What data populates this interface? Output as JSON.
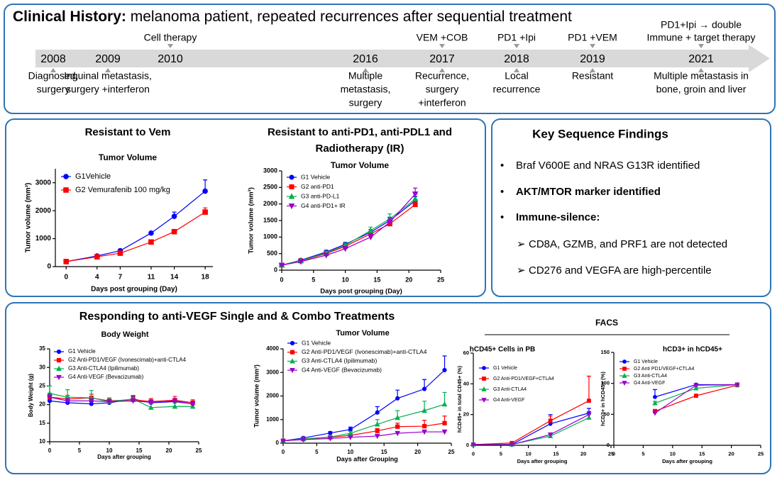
{
  "header": {
    "title_bold": "Clinical History:",
    "title_rest": " melanoma patient, repeated recurrences after sequential treatment"
  },
  "timeline": {
    "events": [
      {
        "year": "2008",
        "above": [],
        "below": [
          "Diagnosed,",
          "surgery"
        ]
      },
      {
        "year": "2009",
        "above": [],
        "below": [
          "Inguinal metastasis,",
          "surgery +interferon"
        ]
      },
      {
        "year": "2010",
        "above": [
          "Cell therapy"
        ],
        "below": []
      },
      {
        "year": "2016",
        "above": [],
        "below": [
          "Multiple",
          "metastasis,",
          "surgery"
        ]
      },
      {
        "year": "2017",
        "above": [
          "VEM +COB"
        ],
        "below": [
          "Recurrence,",
          "surgery",
          "+interferon"
        ]
      },
      {
        "year": "2018",
        "above": [
          "PD1 +Ipi"
        ],
        "below": [
          "Local",
          "recurrence"
        ]
      },
      {
        "year": "2019",
        "above": [
          "PD1 +VEM"
        ],
        "below": [
          "Resistant"
        ]
      },
      {
        "year": "2021",
        "above": [
          "PD1+Ipi → double",
          "Immune + target therapy"
        ],
        "below": [
          "Multiple metastasis in",
          "bone, groin and liver"
        ]
      }
    ]
  },
  "findings": {
    "title": "Key Sequence Findings",
    "items": [
      {
        "bullet": "•",
        "text": "Braf V600E and NRAS G13R identified",
        "bold": false,
        "color": "#222222",
        "indent": false
      },
      {
        "bullet": "•",
        "text": "AKT/MTOR marker identified",
        "bold": true,
        "color": "#222222",
        "indent": false
      },
      {
        "bullet": "•",
        "text": "Immune-silence:",
        "bold": true,
        "color": "#222222",
        "indent": false
      },
      {
        "bullet": "➢",
        "text": "CD8A, GZMB, and PRF1 are not detected",
        "bold": false,
        "color": "#222222",
        "indent": true
      },
      {
        "bullet": "➢",
        "text": "CD276 and VEGFA are high-percentile",
        "bold": false,
        "color": "#c00000",
        "indent": true
      }
    ]
  },
  "response_panel": {
    "title": "Responding to anti-VEGF Single and & Combo Treatments"
  },
  "facs": {
    "title": "FACS"
  },
  "chart_data": [
    {
      "type": "line",
      "title": "Resistant to Vem",
      "subtitle": "Tumor Volume",
      "x_label": "Days post grouping (Day)",
      "y_label": "Tumor volume (mm³)",
      "x": [
        0,
        4,
        7,
        11,
        14,
        18
      ],
      "xlim": [
        -1.4,
        19
      ],
      "xticks": [
        0,
        4,
        7,
        11,
        14,
        18
      ],
      "ylim": [
        0,
        3500
      ],
      "yticks": [
        0,
        1000,
        2000,
        3000
      ],
      "series": [
        {
          "name": "G1Vehicle",
          "color": "#0000ff",
          "marker": "circle",
          "values": [
            180,
            380,
            570,
            1200,
            1800,
            2700
          ],
          "errors": [
            20,
            30,
            30,
            40,
            150,
            400
          ]
        },
        {
          "name": "G2 Vemurafenib 100 mg/kg",
          "color": "#ff0000",
          "marker": "square",
          "values": [
            180,
            350,
            480,
            880,
            1250,
            1950
          ],
          "errors": [
            20,
            30,
            30,
            50,
            80,
            150
          ]
        }
      ]
    },
    {
      "type": "line",
      "title": [
        "Resistant to anti-PD1, anti-PDL1 and",
        "Radiotherapy (IR)"
      ],
      "subtitle": "Tumor Volume",
      "x_label": "Days post grouping (Day)",
      "y_label": "Tumor volume (mm³)",
      "x": [
        0,
        3,
        7,
        10,
        14,
        17,
        21
      ],
      "xlim": [
        0,
        25
      ],
      "xticks": [
        0,
        5,
        10,
        15,
        20,
        25
      ],
      "ylim": [
        0,
        3000
      ],
      "yticks": [
        0,
        500,
        1000,
        1500,
        2000,
        2500,
        3000
      ],
      "series": [
        {
          "name": "G1 Vehicle",
          "color": "#0000ff",
          "marker": "circle",
          "values": [
            150,
            300,
            550,
            780,
            1150,
            1500,
            2100
          ],
          "errors": [
            10,
            30,
            50,
            60,
            80,
            100,
            120
          ]
        },
        {
          "name": "G2 anti-PD1",
          "color": "#ff0000",
          "marker": "square",
          "values": [
            150,
            280,
            500,
            720,
            1100,
            1400,
            1980
          ],
          "errors": [
            10,
            30,
            40,
            60,
            80,
            100,
            100
          ]
        },
        {
          "name": "G3 anti-PD-L1",
          "color": "#00b050",
          "marker": "triangle",
          "values": [
            150,
            290,
            520,
            750,
            1200,
            1550,
            2150
          ],
          "errors": [
            10,
            30,
            50,
            70,
            100,
            150,
            150
          ]
        },
        {
          "name": "G4 anti-PD1+ IR",
          "color": "#9900cc",
          "marker": "triangle-down",
          "values": [
            150,
            260,
            450,
            650,
            1000,
            1450,
            2300
          ],
          "errors": [
            10,
            30,
            40,
            60,
            80,
            120,
            180
          ]
        }
      ]
    },
    {
      "type": "line",
      "title": "Body Weight",
      "x_label": "Days after grouping",
      "y_label": "Body Weight (g)",
      "x": [
        0,
        3,
        7,
        10,
        14,
        17,
        21,
        24
      ],
      "xlim": [
        0,
        25
      ],
      "xticks": [
        0,
        5,
        10,
        15,
        20,
        25
      ],
      "ylim": [
        10,
        35
      ],
      "yticks": [
        10,
        15,
        20,
        25,
        30,
        35
      ],
      "series": [
        {
          "name": "G1 Vehicle",
          "color": "#0000ff",
          "marker": "circle",
          "values": [
            21,
            20.5,
            20.2,
            20.5,
            21.5,
            20.5,
            20.8,
            20.2
          ],
          "errors": [
            0.8,
            0.6,
            0.6,
            0.6,
            0.8,
            0.7,
            0.7,
            0.6
          ]
        },
        {
          "name": "G2 Anti-PD1/VEGF (Ivonescimab)+anti-CTLA4",
          "color": "#ff0000",
          "marker": "square",
          "values": [
            22,
            21.5,
            21.8,
            21,
            21.3,
            20.8,
            21.2,
            20.5
          ],
          "errors": [
            1,
            1,
            1,
            0.8,
            0.8,
            0.8,
            1,
            0.8
          ]
        },
        {
          "name": "G3 Anti-CTLA4 (Ipilimumab)",
          "color": "#00b050",
          "marker": "triangle",
          "values": [
            23,
            22,
            21.8,
            20.8,
            21.5,
            19.2,
            19.5,
            19.5
          ],
          "errors": [
            2,
            2,
            2,
            1,
            1,
            1,
            1,
            1
          ]
        },
        {
          "name": "G4 Anti-VEGF (Bevacizumab)",
          "color": "#9900cc",
          "marker": "triangle-down",
          "values": [
            22,
            21,
            21,
            20.8,
            21,
            20.6,
            21,
            20.2
          ],
          "errors": [
            0.8,
            0.6,
            0.6,
            0.6,
            0.6,
            0.6,
            0.6,
            0.6
          ]
        }
      ]
    },
    {
      "type": "line",
      "title": "Tumor Volume",
      "x_label": "Days after Grouping",
      "y_label": "Tumor volume (mm³)",
      "x": [
        0,
        3,
        7,
        10,
        14,
        17,
        21,
        24
      ],
      "xlim": [
        0,
        25
      ],
      "xticks": [
        0,
        5,
        10,
        15,
        20,
        25
      ],
      "ylim": [
        0,
        4000
      ],
      "yticks": [
        0,
        1000,
        2000,
        3000,
        4000
      ],
      "series": [
        {
          "name": "G1 Vehicle",
          "color": "#0000ff",
          "marker": "circle",
          "values": [
            100,
            220,
            430,
            580,
            1300,
            1900,
            2300,
            3100
          ],
          "errors": [
            20,
            40,
            60,
            100,
            250,
            350,
            400,
            600
          ]
        },
        {
          "name": "G2 Anti-PD1/VEGF (Ivonescimab)+anti-CTLA4",
          "color": "#ff0000",
          "marker": "square",
          "values": [
            100,
            170,
            250,
            330,
            520,
            700,
            720,
            850
          ],
          "errors": [
            20,
            30,
            40,
            60,
            100,
            150,
            250,
            300
          ]
        },
        {
          "name": "G3 Anti-CTLA4 (Ipilimumab)",
          "color": "#00b050",
          "marker": "triangle",
          "values": [
            100,
            180,
            260,
            420,
            800,
            1080,
            1380,
            1650
          ],
          "errors": [
            20,
            30,
            50,
            80,
            200,
            300,
            400,
            500
          ]
        },
        {
          "name": "G4 Anti-VEGF (Bevacizumab)",
          "color": "#9900cc",
          "marker": "triangle-down",
          "values": [
            100,
            150,
            200,
            250,
            300,
            420,
            480,
            480
          ],
          "errors": [
            20,
            30,
            30,
            40,
            50,
            60,
            80,
            80
          ]
        }
      ]
    },
    {
      "type": "line",
      "title": "hCD45+ Cells in PB",
      "x_label": "Days after grouping",
      "y_label": "hCD45+ in total CD45+ (%)",
      "x": [
        0,
        7,
        14,
        21
      ],
      "xlim": [
        0,
        25
      ],
      "xticks": [
        0,
        5,
        10,
        15,
        20,
        25
      ],
      "ylim": [
        0,
        60
      ],
      "yticks": [
        0,
        20,
        40,
        60
      ],
      "series": [
        {
          "name": "G1 Vehicle",
          "color": "#0000ff",
          "marker": "circle",
          "values": [
            0.5,
            0.5,
            14,
            21
          ],
          "errors": [
            0,
            0.3,
            6,
            3
          ]
        },
        {
          "name": "G2 Anti-PD1/VEGF+CTLA4",
          "color": "#ff0000",
          "marker": "square",
          "values": [
            0.5,
            1.5,
            16,
            29
          ],
          "errors": [
            0,
            0.5,
            3,
            16
          ]
        },
        {
          "name": "G3 Anti-CTLA4",
          "color": "#00b050",
          "marker": "triangle",
          "values": [
            0.5,
            0.5,
            6,
            18
          ],
          "errors": [
            0,
            0.3,
            1,
            2
          ]
        },
        {
          "name": "G4 Anti-VEGF",
          "color": "#9900cc",
          "marker": "triangle-down",
          "values": [
            0.5,
            0.5,
            7,
            20
          ],
          "errors": [
            0,
            0.3,
            1,
            2
          ]
        }
      ]
    },
    {
      "type": "line",
      "title": "hCD3+ in hCD45+",
      "x_label": "Days after grouping",
      "y_label": "hCD3+ in hCD45+ (%)",
      "x": [
        7,
        14,
        21
      ],
      "xlim": [
        0,
        25
      ],
      "xticks": [
        0,
        5,
        10,
        15,
        20,
        25
      ],
      "ylim": [
        0,
        150
      ],
      "yticks": [
        0,
        50,
        100,
        150
      ],
      "series": [
        {
          "name": "G1 Vehicle",
          "color": "#0000ff",
          "marker": "circle",
          "values": [
            78,
            98,
            98
          ],
          "errors": [
            12,
            1,
            1
          ]
        },
        {
          "name": "G2 Anti PD1/VEGF+CTLA4",
          "color": "#ff0000",
          "marker": "square",
          "values": [
            55,
            80,
            97
          ],
          "errors": [
            3,
            2,
            1
          ]
        },
        {
          "name": "G3 Anti-CTLA4",
          "color": "#00b050",
          "marker": "triangle",
          "values": [
            68,
            92,
            98
          ],
          "errors": [
            3,
            2,
            1
          ]
        },
        {
          "name": "G4 Anti-VEGF",
          "color": "#9900cc",
          "marker": "triangle-down",
          "values": [
            52,
            97,
            98
          ],
          "errors": [
            3,
            1,
            1
          ]
        }
      ]
    }
  ]
}
